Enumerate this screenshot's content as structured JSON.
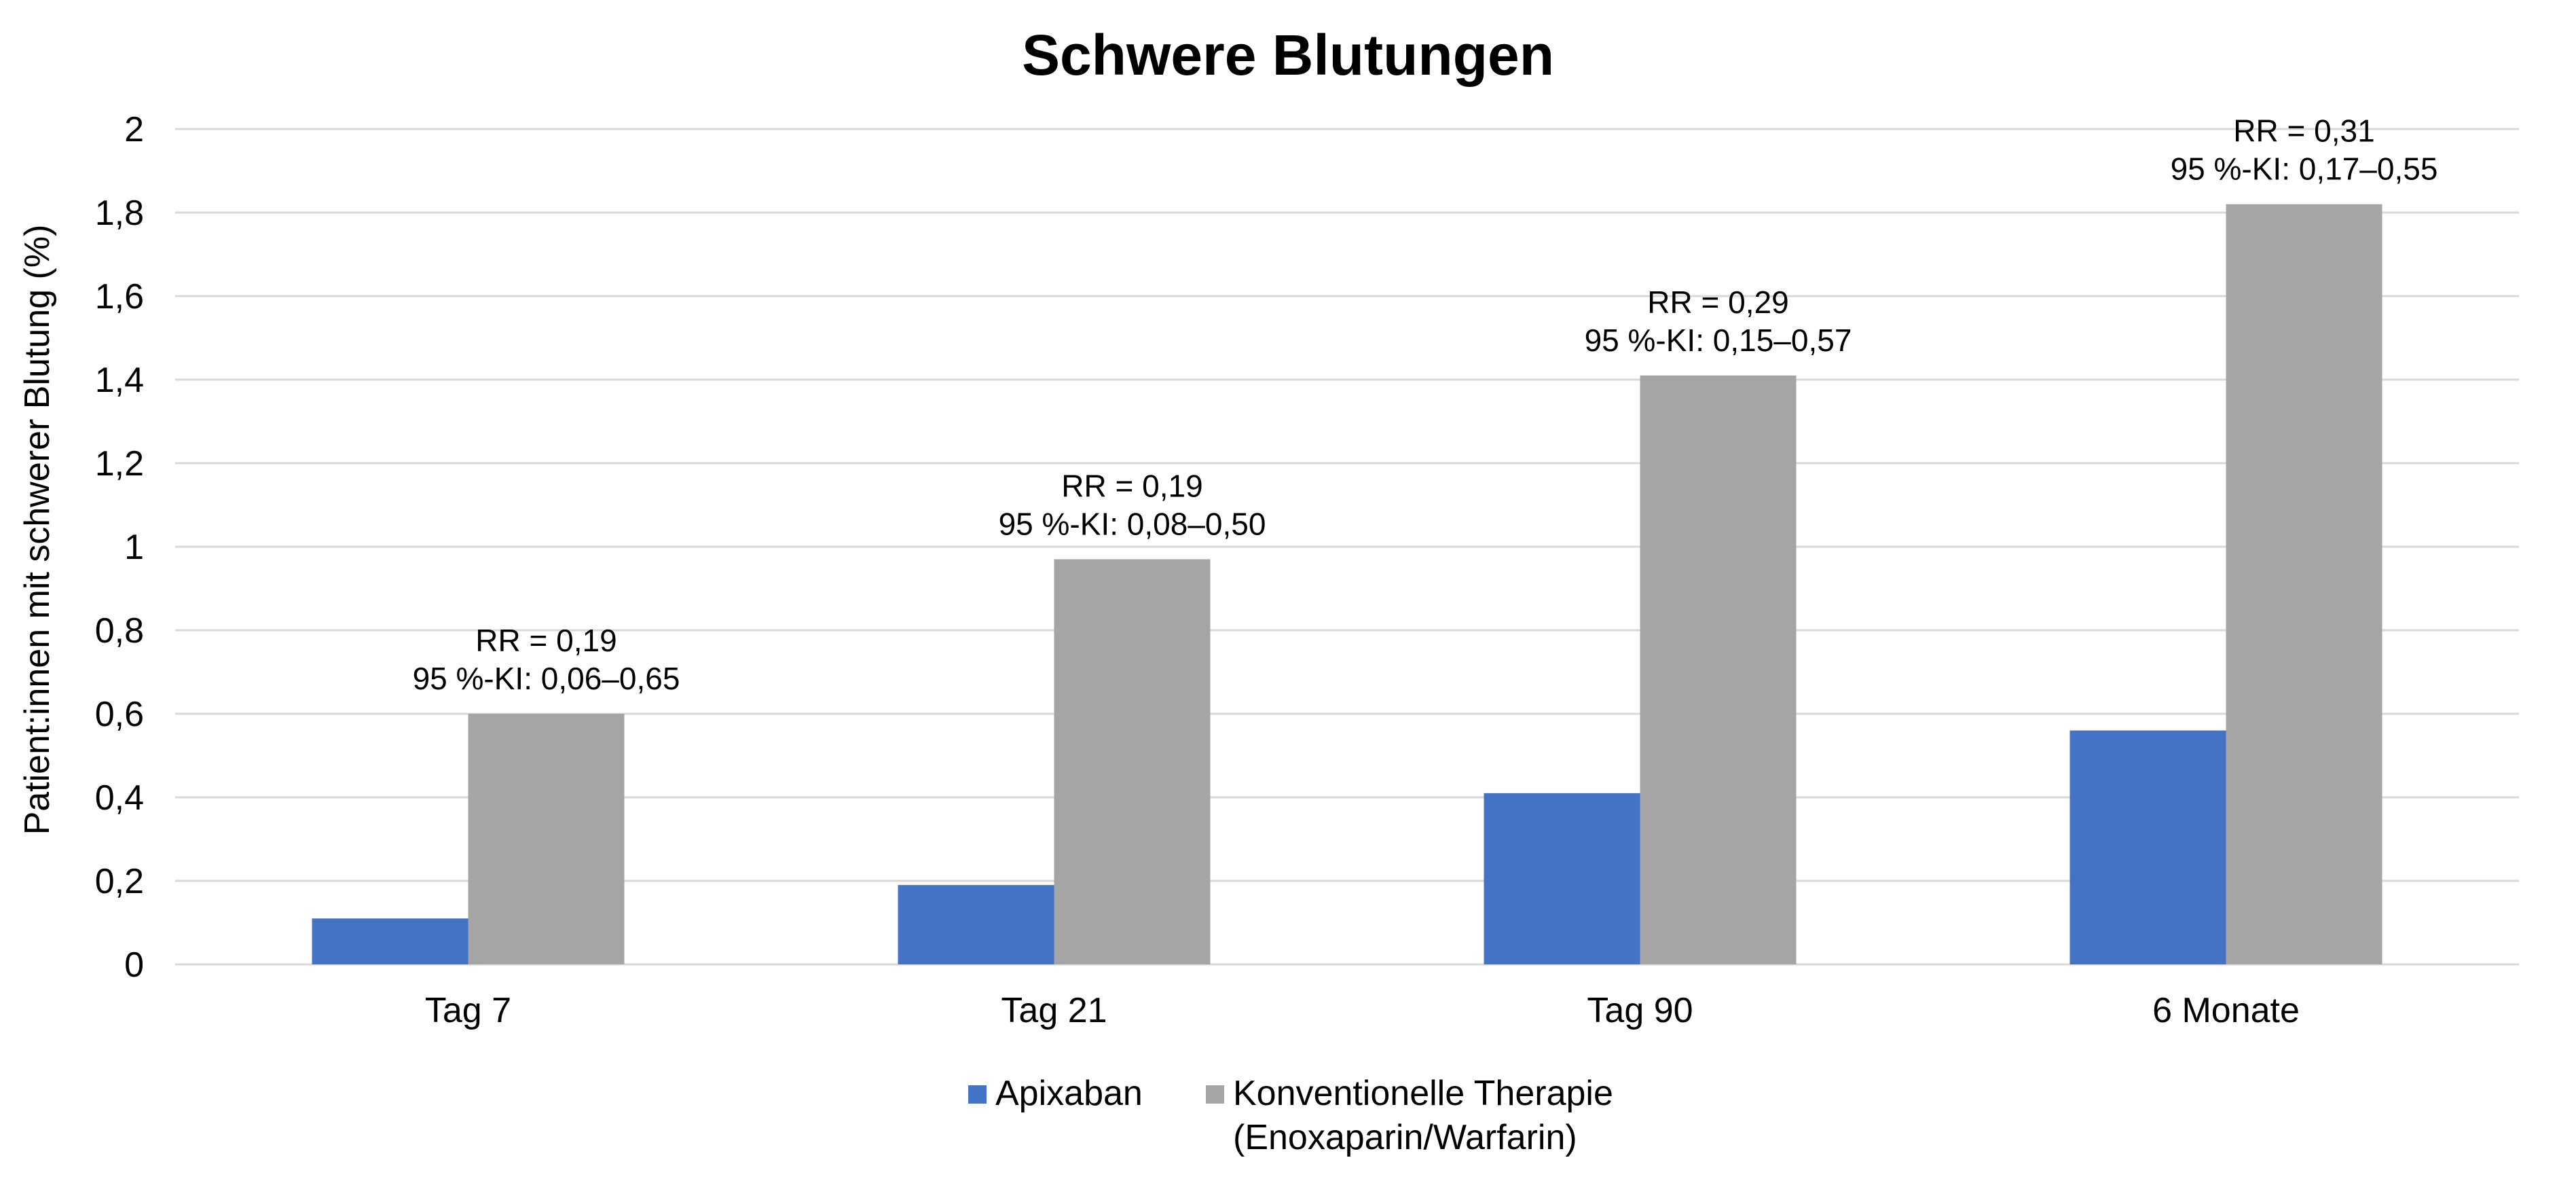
{
  "chart_data": {
    "type": "bar",
    "title": "Schwere Blutungen",
    "xlabel": "",
    "ylabel": "Patient:innen mit schwerer Blutung (%)",
    "ylim": [
      0,
      2
    ],
    "yticks": [
      0,
      0.2,
      0.4,
      0.6,
      0.8,
      1,
      1.2,
      1.4,
      1.6,
      1.8,
      2
    ],
    "ytick_labels": [
      "0",
      "0,2",
      "0,4",
      "0,6",
      "0,8",
      "1",
      "1,2",
      "1,4",
      "1,6",
      "1,8",
      "2"
    ],
    "grid": true,
    "legend_position": "bottom",
    "categories": [
      "Tag 7",
      "Tag 21",
      "Tag 90",
      "6 Monate"
    ],
    "series": [
      {
        "name": "Apixaban",
        "color": "#4472C4",
        "values": [
          0.11,
          0.19,
          0.41,
          0.56
        ]
      },
      {
        "name": "Konventionelle Therapie",
        "name_line2": "(Enoxaparin/Warfarin)",
        "color": "#A5A5A5",
        "values": [
          0.6,
          0.97,
          1.41,
          1.82
        ]
      }
    ],
    "annotations": [
      {
        "line1": "RR = 0,19",
        "line2": "95 %-KI: 0,06–0,65"
      },
      {
        "line1": "RR = 0,19",
        "line2": "95 %-KI: 0,08–0,50"
      },
      {
        "line1": "RR = 0,29",
        "line2": "95 %-KI: 0,15–0,57"
      },
      {
        "line1": "RR = 0,31",
        "line2": "95 %-KI: 0,17–0,55"
      }
    ]
  }
}
